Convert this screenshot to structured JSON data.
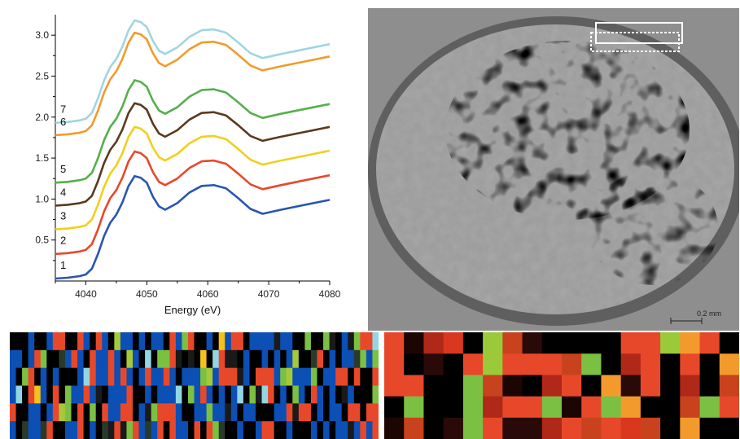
{
  "chart_data": {
    "type": "line",
    "xlabel": "Energy (eV)",
    "ylabel": "",
    "xlim": [
      4035,
      4080
    ],
    "ylim": [
      0.0,
      3.25
    ],
    "x_ticks": [
      "4040",
      "4050",
      "4060",
      "4070",
      "4080"
    ],
    "y_ticks": [
      "0.5",
      "1.0",
      "1.5",
      "2.0",
      "2.5",
      "3.0"
    ],
    "grid": false,
    "series": [
      {
        "name": "1",
        "color": "#2855b4",
        "offset": 0.03
      },
      {
        "name": "2",
        "color": "#e8482a",
        "offset": 0.33
      },
      {
        "name": "3",
        "color": "#f2cf1e",
        "offset": 0.63
      },
      {
        "name": "4",
        "color": "#5a3a1e",
        "offset": 0.92
      },
      {
        "name": "5",
        "color": "#55b04a",
        "offset": 1.2
      },
      {
        "name": "6",
        "color": "#f39a2c",
        "offset": 1.78
      },
      {
        "name": "7",
        "color": "#9fd6e0",
        "offset": 1.93
      }
    ],
    "base_x": [
      4035,
      4037,
      4039,
      4040,
      4041,
      4042,
      4043,
      4044,
      4045,
      4046,
      4047,
      4048,
      4049,
      4050,
      4051,
      4052,
      4053,
      4055,
      4057,
      4059,
      4061,
      4063,
      4065,
      4067,
      4069,
      4072,
      4076,
      4080
    ],
    "base_y": [
      0.0,
      0.01,
      0.03,
      0.05,
      0.12,
      0.3,
      0.52,
      0.68,
      0.78,
      0.93,
      1.13,
      1.25,
      1.23,
      1.17,
      1.0,
      0.88,
      0.84,
      0.92,
      1.05,
      1.13,
      1.14,
      1.1,
      0.98,
      0.85,
      0.79,
      0.84,
      0.9,
      0.96
    ]
  },
  "micrograph": {
    "scale_bar_label": "0.2 mm"
  },
  "maps": {
    "left_palette": [
      "#000000",
      "#0c4fb5",
      "#e8482a",
      "#7bc043",
      "#a6c93a",
      "#1a1a1a",
      "#0c4fb5",
      "#000000",
      "#e8482a",
      "#2a3a2a",
      "#93d6e3",
      "#f3c21c"
    ],
    "right_palette": [
      "#000000",
      "#e8482a",
      "#b02818",
      "#7bc043",
      "#c8421e",
      "#2a0a08",
      "#9ac93a",
      "#f39a2c",
      "#1c0604",
      "#d9381e"
    ]
  }
}
